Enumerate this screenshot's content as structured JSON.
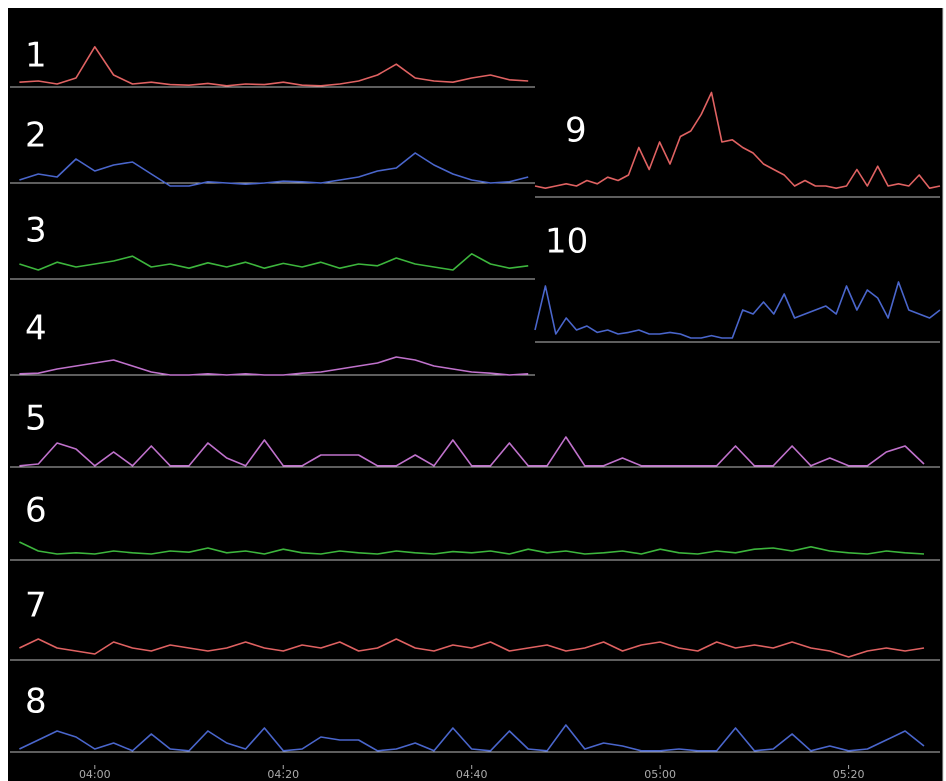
{
  "chart_data": [
    {
      "type": "line",
      "title": "1",
      "color": "#e06262",
      "xlim": [
        -9,
        89.7
      ],
      "ylim": [
        0,
        1
      ],
      "x": [
        -8,
        -6,
        -4,
        -2,
        0,
        2,
        4,
        6,
        8,
        10,
        12,
        14,
        16,
        18,
        20,
        22,
        24,
        26,
        28,
        30,
        32,
        34,
        36,
        38,
        40,
        42,
        44,
        46
      ],
      "values": [
        0.08,
        0.1,
        0.05,
        0.15,
        0.67,
        0.2,
        0.05,
        0.08,
        0.04,
        0.03,
        0.06,
        0.02,
        0.05,
        0.04,
        0.08,
        0.03,
        0.02,
        0.05,
        0.1,
        0.2,
        0.38,
        0.15,
        0.1,
        0.08,
        0.15,
        0.2,
        0.12,
        0.1
      ]
    },
    {
      "type": "line",
      "title": "2",
      "color": "#4a66cc",
      "xlim": [
        -9,
        89.7
      ],
      "ylim": [
        0,
        1
      ],
      "x": [
        -8,
        -6,
        -4,
        -2,
        0,
        2,
        4,
        6,
        8,
        10,
        12,
        14,
        16,
        18,
        20,
        22,
        24,
        26,
        28,
        30,
        32,
        34,
        36,
        38,
        40,
        42,
        44,
        46
      ],
      "values": [
        0.05,
        0.15,
        0.1,
        0.4,
        0.2,
        0.3,
        0.35,
        0.15,
        -0.05,
        -0.05,
        0.02,
        0.0,
        -0.02,
        0.0,
        0.03,
        0.02,
        0.0,
        0.05,
        0.1,
        0.2,
        0.25,
        0.5,
        0.3,
        0.15,
        0.05,
        0.0,
        0.02,
        0.1
      ]
    },
    {
      "type": "line",
      "title": "3",
      "color": "#3db63d",
      "xlim": [
        -9,
        89.7
      ],
      "ylim": [
        0,
        1
      ],
      "x": [
        -8,
        -6,
        -4,
        -2,
        0,
        2,
        4,
        6,
        8,
        10,
        12,
        14,
        16,
        18,
        20,
        22,
        24,
        26,
        28,
        30,
        32,
        34,
        36,
        38,
        40,
        42,
        44,
        46
      ],
      "values": [
        0.25,
        0.15,
        0.28,
        0.2,
        0.25,
        0.3,
        0.38,
        0.2,
        0.25,
        0.18,
        0.27,
        0.2,
        0.28,
        0.18,
        0.26,
        0.2,
        0.28,
        0.18,
        0.25,
        0.22,
        0.35,
        0.25,
        0.2,
        0.15,
        0.42,
        0.25,
        0.18,
        0.22
      ]
    },
    {
      "type": "line",
      "title": "4",
      "color": "#c072cc",
      "xlim": [
        -9,
        89.7
      ],
      "ylim": [
        0,
        1
      ],
      "x": [
        -8,
        -6,
        -4,
        -2,
        0,
        2,
        4,
        6,
        8,
        10,
        12,
        14,
        16,
        18,
        20,
        22,
        24,
        26,
        28,
        30,
        32,
        34,
        36,
        38,
        40,
        42,
        44,
        46
      ],
      "values": [
        0.02,
        0.03,
        0.1,
        0.15,
        0.2,
        0.25,
        0.15,
        0.05,
        0.0,
        0.0,
        0.02,
        0.0,
        0.02,
        0.0,
        0.0,
        0.03,
        0.05,
        0.1,
        0.15,
        0.2,
        0.3,
        0.25,
        0.15,
        0.1,
        0.05,
        0.03,
        0.0,
        0.02
      ]
    },
    {
      "type": "line",
      "title": "5",
      "color": "#c072cc",
      "xlim": [
        -9,
        89.7
      ],
      "ylim": [
        0,
        1
      ],
      "x": [
        -8,
        -6,
        -4,
        -2,
        0,
        2,
        4,
        6,
        8,
        10,
        12,
        14,
        16,
        18,
        20,
        22,
        24,
        26,
        28,
        30,
        32,
        34,
        36,
        38,
        40,
        42,
        44,
        46,
        48,
        50,
        52,
        54,
        56,
        58,
        60,
        62,
        64,
        66,
        68,
        70,
        72,
        74,
        76,
        78,
        80,
        82,
        84,
        86,
        88
      ],
      "values": [
        0.02,
        0.05,
        0.4,
        0.3,
        0.02,
        0.25,
        0.02,
        0.35,
        0.02,
        0.02,
        0.4,
        0.15,
        0.02,
        0.45,
        0.02,
        0.02,
        0.2,
        0.2,
        0.2,
        0.02,
        0.02,
        0.2,
        0.02,
        0.45,
        0.02,
        0.02,
        0.4,
        0.02,
        0.02,
        0.5,
        0.02,
        0.02,
        0.15,
        0.02,
        0.02,
        0.02,
        0.02,
        0.02,
        0.35,
        0.02,
        0.02,
        0.35,
        0.02,
        0.15,
        0.02,
        0.02,
        0.25,
        0.35,
        0.05
      ]
    },
    {
      "type": "line",
      "title": "6",
      "color": "#3db63d",
      "xlim": [
        -9,
        89.7
      ],
      "ylim": [
        0,
        1
      ],
      "x": [
        -8,
        -6,
        -4,
        -2,
        0,
        2,
        4,
        6,
        8,
        10,
        12,
        14,
        16,
        18,
        20,
        22,
        24,
        26,
        28,
        30,
        32,
        34,
        36,
        38,
        40,
        42,
        44,
        46,
        48,
        50,
        52,
        54,
        56,
        58,
        60,
        62,
        64,
        66,
        68,
        70,
        72,
        74,
        76,
        78,
        80,
        82,
        84,
        86,
        88
      ],
      "values": [
        0.3,
        0.15,
        0.1,
        0.12,
        0.1,
        0.15,
        0.12,
        0.1,
        0.15,
        0.13,
        0.2,
        0.12,
        0.15,
        0.1,
        0.18,
        0.12,
        0.1,
        0.15,
        0.12,
        0.1,
        0.15,
        0.12,
        0.1,
        0.14,
        0.12,
        0.15,
        0.1,
        0.18,
        0.12,
        0.15,
        0.1,
        0.12,
        0.15,
        0.1,
        0.18,
        0.12,
        0.1,
        0.15,
        0.12,
        0.18,
        0.2,
        0.15,
        0.22,
        0.15,
        0.12,
        0.1,
        0.15,
        0.12,
        0.1
      ]
    },
    {
      "type": "line",
      "title": "7",
      "color": "#e06262",
      "xlim": [
        -9,
        89.7
      ],
      "ylim": [
        0,
        1
      ],
      "x": [
        -8,
        -6,
        -4,
        -2,
        0,
        2,
        4,
        6,
        8,
        10,
        12,
        14,
        16,
        18,
        20,
        22,
        24,
        26,
        28,
        30,
        32,
        34,
        36,
        38,
        40,
        42,
        44,
        46,
        48,
        50,
        52,
        54,
        56,
        58,
        60,
        62,
        64,
        66,
        68,
        70,
        72,
        74,
        76,
        78,
        80,
        82,
        84,
        86,
        88
      ],
      "values": [
        0.2,
        0.35,
        0.2,
        0.15,
        0.1,
        0.3,
        0.2,
        0.15,
        0.25,
        0.2,
        0.15,
        0.2,
        0.3,
        0.2,
        0.15,
        0.25,
        0.2,
        0.3,
        0.15,
        0.2,
        0.35,
        0.2,
        0.15,
        0.25,
        0.2,
        0.3,
        0.15,
        0.2,
        0.25,
        0.15,
        0.2,
        0.3,
        0.15,
        0.25,
        0.3,
        0.2,
        0.15,
        0.3,
        0.2,
        0.25,
        0.2,
        0.3,
        0.2,
        0.15,
        0.05,
        0.15,
        0.2,
        0.15,
        0.2
      ]
    },
    {
      "type": "line",
      "title": "8",
      "color": "#4a66cc",
      "xlim": [
        -9,
        89.7
      ],
      "ylim": [
        0,
        1
      ],
      "xticks": [
        {
          "value": 0,
          "label": "04:00"
        },
        {
          "value": 20,
          "label": "04:20"
        },
        {
          "value": 40,
          "label": "04:40"
        },
        {
          "value": 60,
          "label": "05:00"
        },
        {
          "value": 80,
          "label": "05:20"
        }
      ],
      "x": [
        -8,
        -6,
        -4,
        -2,
        0,
        2,
        4,
        6,
        8,
        10,
        12,
        14,
        16,
        18,
        20,
        22,
        24,
        26,
        28,
        30,
        32,
        34,
        36,
        38,
        40,
        42,
        44,
        46,
        48,
        50,
        52,
        54,
        56,
        58,
        60,
        62,
        64,
        66,
        68,
        70,
        72,
        74,
        76,
        78,
        80,
        82,
        84,
        86,
        88
      ],
      "values": [
        0.05,
        0.2,
        0.35,
        0.25,
        0.05,
        0.15,
        0.02,
        0.3,
        0.05,
        0.02,
        0.35,
        0.15,
        0.05,
        0.4,
        0.02,
        0.05,
        0.25,
        0.2,
        0.2,
        0.02,
        0.05,
        0.15,
        0.02,
        0.4,
        0.05,
        0.02,
        0.35,
        0.05,
        0.02,
        0.45,
        0.05,
        0.15,
        0.1,
        0.02,
        0.02,
        0.05,
        0.02,
        0.02,
        0.4,
        0.02,
        0.05,
        0.3,
        0.02,
        0.1,
        0.02,
        0.05,
        0.2,
        0.35,
        0.1
      ]
    },
    {
      "type": "line",
      "title": "9",
      "color": "#e06262",
      "ylim": [
        0,
        1
      ],
      "values": [
        0.1,
        0.08,
        0.1,
        0.12,
        0.1,
        0.15,
        0.12,
        0.18,
        0.15,
        0.2,
        0.45,
        0.25,
        0.5,
        0.3,
        0.55,
        0.6,
        0.75,
        0.95,
        0.5,
        0.52,
        0.45,
        0.4,
        0.3,
        0.25,
        0.2,
        0.1,
        0.15,
        0.1,
        0.1,
        0.08,
        0.1,
        0.25,
        0.1,
        0.28,
        0.1,
        0.12,
        0.1,
        0.2,
        0.08,
        0.1
      ]
    },
    {
      "type": "line",
      "title": "10",
      "color": "#4a66cc",
      "ylim": [
        0,
        1
      ],
      "values": [
        0.15,
        0.7,
        0.1,
        0.3,
        0.15,
        0.2,
        0.12,
        0.15,
        0.1,
        0.12,
        0.15,
        0.1,
        0.1,
        0.12,
        0.1,
        0.05,
        0.05,
        0.08,
        0.05,
        0.05,
        0.4,
        0.35,
        0.5,
        0.35,
        0.6,
        0.3,
        0.35,
        0.4,
        0.45,
        0.35,
        0.7,
        0.4,
        0.65,
        0.55,
        0.3,
        0.75,
        0.4,
        0.35,
        0.3,
        0.4
      ]
    }
  ]
}
